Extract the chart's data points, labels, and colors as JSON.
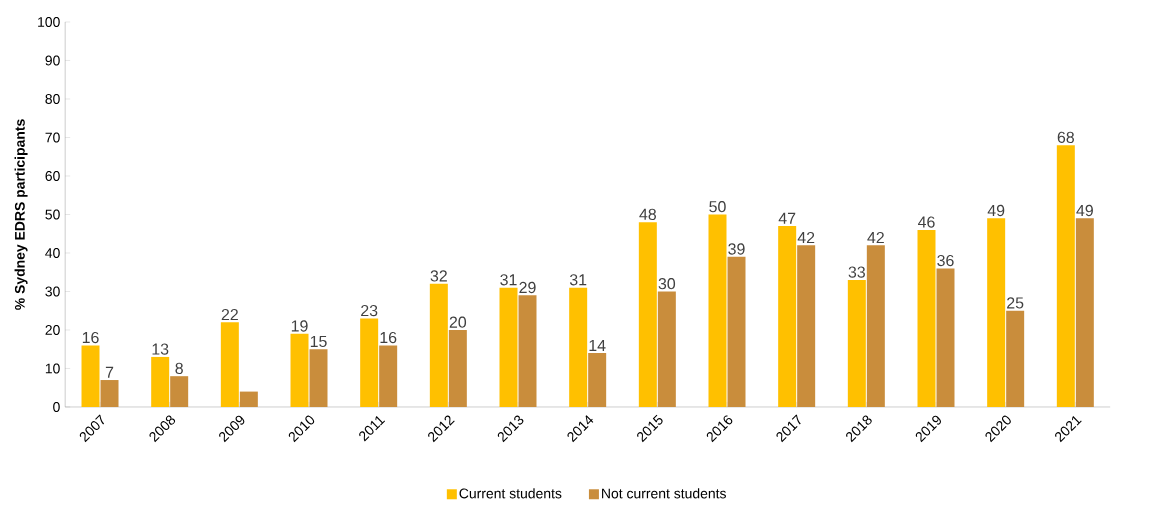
{
  "chart_data": {
    "type": "bar",
    "ylabel": "% Sydney EDRS participants",
    "categories": [
      "2007",
      "2008",
      "2009",
      "2010",
      "2011",
      "2012",
      "2013",
      "2014",
      "2015",
      "2016",
      "2017",
      "2018",
      "2019",
      "2020",
      "2021"
    ],
    "series": [
      {
        "name": "Current students",
        "color": "#ffc000",
        "values": [
          16,
          13,
          22,
          19,
          23,
          32,
          31,
          31,
          48,
          50,
          47,
          33,
          46,
          49,
          68
        ],
        "value_labels": [
          "16",
          "13",
          "22",
          "19",
          "23",
          "32",
          "31",
          "31",
          "48",
          "50",
          "47",
          "33",
          "46",
          "49",
          "68"
        ]
      },
      {
        "name": "Not current students",
        "color": "#c98d3c",
        "values": [
          7,
          8,
          4,
          15,
          16,
          20,
          29,
          14,
          30,
          39,
          42,
          42,
          36,
          25,
          49
        ],
        "value_labels": [
          "7",
          "8",
          null,
          "15",
          "16",
          "20",
          "29",
          "14",
          "30",
          "39",
          "42",
          "42",
          "36",
          "25",
          "49"
        ]
      }
    ],
    "ylim": [
      0,
      100
    ],
    "yticks": [
      0,
      10,
      20,
      30,
      40,
      50,
      60,
      70,
      80,
      90,
      100
    ],
    "grid": false,
    "legend": "bottom"
  }
}
